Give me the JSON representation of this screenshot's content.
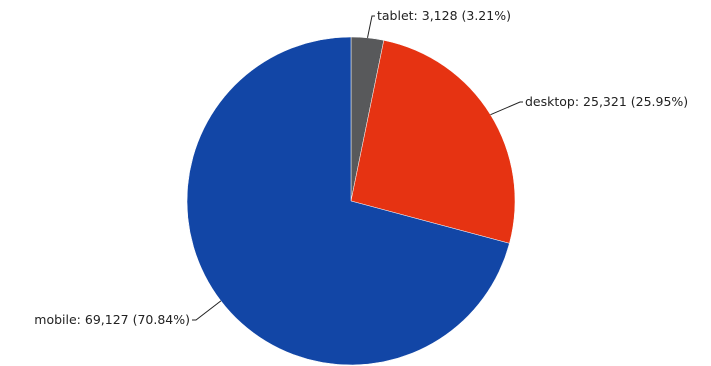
{
  "chart_data": {
    "type": "pie",
    "title": "",
    "slices": [
      {
        "name": "tablet",
        "value": 3128,
        "percent": 3.21,
        "color": "#58595b",
        "label": "tablet: 3,128 (3.21%)"
      },
      {
        "name": "desktop",
        "value": 25321,
        "percent": 25.95,
        "color": "#e63312",
        "label": "desktop: 25,321 (25.95%)"
      },
      {
        "name": "mobile",
        "value": 69127,
        "percent": 70.84,
        "color": "#1246a6",
        "label": "mobile: 69,127 (70.84%)"
      }
    ],
    "start_angle": "12 o'clock",
    "direction": "clockwise",
    "legend": "none"
  }
}
